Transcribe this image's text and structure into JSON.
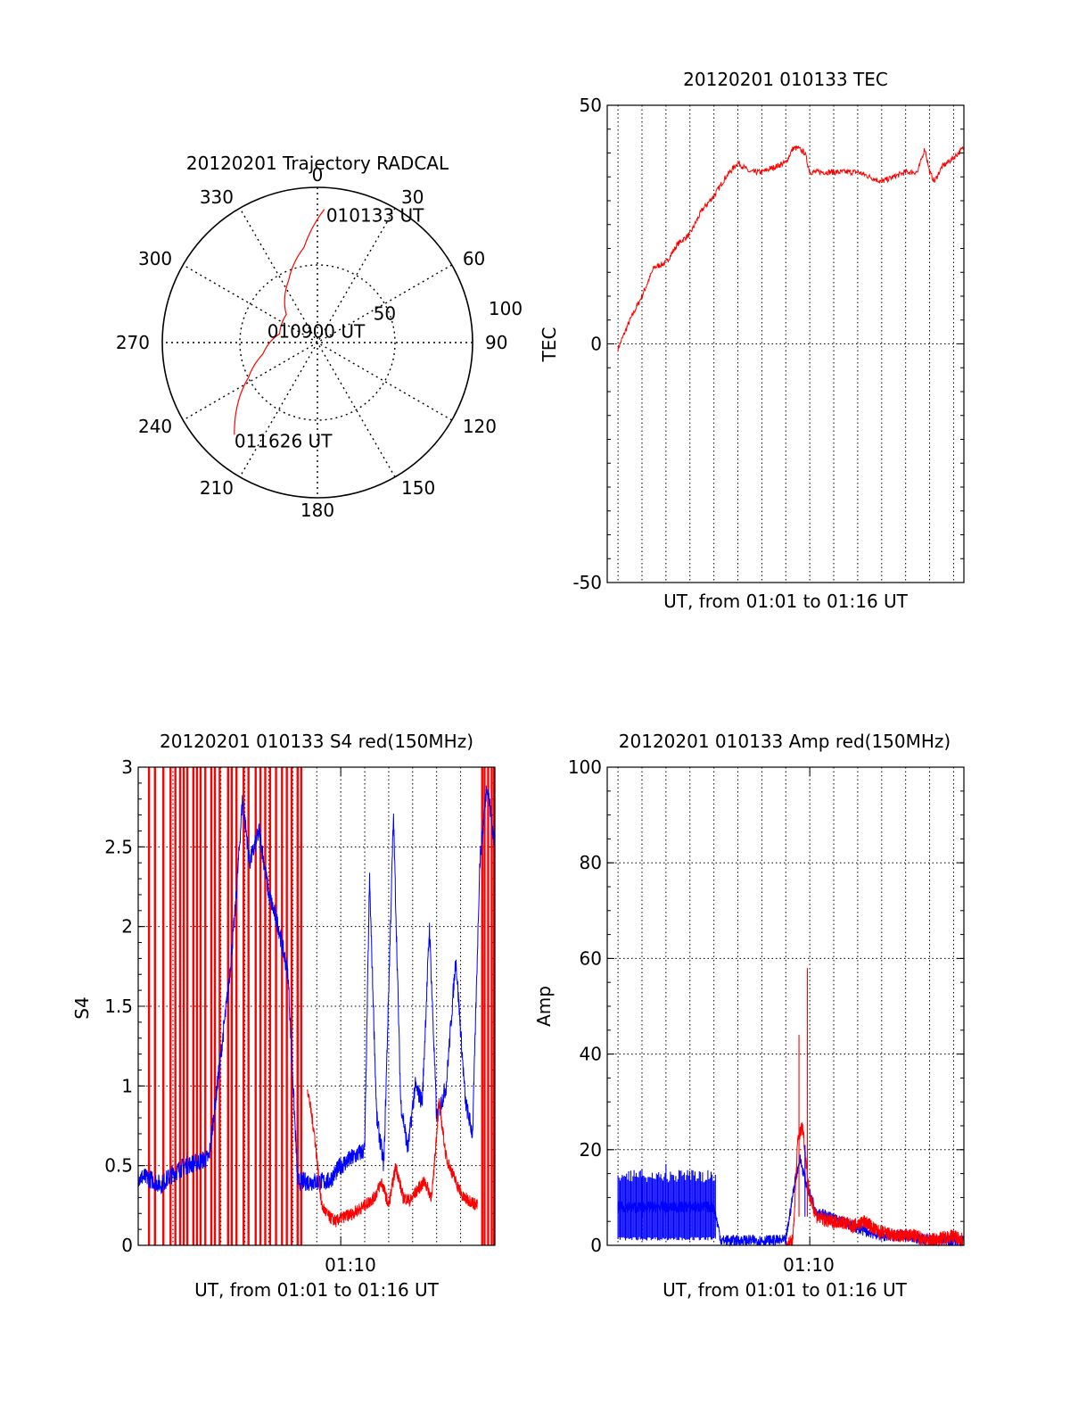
{
  "chart_data": [
    {
      "type": "polar",
      "title": "20120201 Trajectory RADCAL",
      "angle_labels": [
        "0",
        "30",
        "60",
        "90",
        "120",
        "150",
        "180",
        "210",
        "240",
        "270",
        "300",
        "330"
      ],
      "radius_labels": [
        "50",
        "100"
      ],
      "rlim": [
        0,
        100
      ],
      "grid": true,
      "trajectory": {
        "color": "#ff0000",
        "points_az_zd": [
          [
            3,
            86
          ],
          [
            352,
            62
          ],
          [
            335,
            44
          ],
          [
            312,
            27
          ],
          [
            283,
            25
          ],
          [
            258,
            36
          ],
          [
            243,
            50
          ],
          [
            233,
            64
          ],
          [
            226,
            74
          ],
          [
            222,
            80
          ]
        ],
        "labels": [
          {
            "text": "010133 UT",
            "az": 3,
            "zd": 86
          },
          {
            "text": "010900 UT",
            "az": 355,
            "zd": 2
          },
          {
            "text": "011626 UT",
            "az": 222,
            "zd": 80
          }
        ]
      }
    },
    {
      "type": "line",
      "title": "20120201 010133 TEC",
      "xlabel": "UT, from 01:01 to 01:16 UT",
      "ylabel": "TEC",
      "ylim": [
        -50,
        50
      ],
      "yticks": [
        "-50",
        "0",
        "50"
      ],
      "xlim_min": [
        1.55,
        16.43
      ],
      "grid": true,
      "series": [
        {
          "color": "#ff0000",
          "x": [
            2.0,
            2.5,
            3.0,
            3.5,
            4.0,
            4.5,
            5.0,
            5.5,
            6.0,
            6.5,
            7.0,
            7.5,
            8.0,
            8.5,
            9.0,
            9.3,
            9.5,
            9.8,
            10.0,
            10.5,
            11.0,
            11.5,
            12.0,
            12.5,
            13.0,
            13.5,
            14.0,
            14.5,
            14.8,
            15.0,
            15.2,
            15.5,
            16.0,
            16.4
          ],
          "y": [
            -1,
            5,
            10,
            16,
            17,
            21,
            23,
            28,
            31,
            35,
            38,
            36,
            36,
            37,
            38,
            41,
            41,
            40,
            36,
            36,
            36,
            36,
            36,
            35,
            34,
            35,
            36,
            36,
            41,
            36,
            34,
            37,
            39,
            41
          ]
        }
      ]
    },
    {
      "type": "line",
      "title": "20120201 010133 S4 red(150MHz)",
      "xlabel": "UT, from 01:01 to 01:16 UT",
      "ylabel": "S4",
      "ylim": [
        0,
        3
      ],
      "yticks": [
        "0",
        "0.5",
        "1",
        "1.5",
        "2",
        "2.5",
        "3"
      ],
      "xtick_label": "01:10",
      "xtick_min": 10,
      "xlim_min": [
        1.55,
        16.43
      ],
      "grid": true,
      "series": [
        {
          "color": "#0000ff",
          "x": [
            1.55,
            2.0,
            2.5,
            3.0,
            3.5,
            4.0,
            4.5,
            5.0,
            5.3,
            5.6,
            5.9,
            6.2,
            6.6,
            7.0,
            7.4,
            7.8,
            8.2,
            8.6,
            9.0,
            9.5,
            10.0,
            10.5,
            11.0,
            11.2,
            11.5,
            11.8,
            12.2,
            12.5,
            12.8,
            13.1,
            13.4,
            13.7,
            14.0,
            14.4,
            14.8,
            15.2,
            15.5,
            15.8,
            16.1,
            16.43
          ],
          "y": [
            0.43,
            0.42,
            0.38,
            0.45,
            0.5,
            0.52,
            0.55,
            1.2,
            1.6,
            2.1,
            2.8,
            2.4,
            2.6,
            2.2,
            2.0,
            1.7,
            0.4,
            0.4,
            0.4,
            0.4,
            0.5,
            0.55,
            0.6,
            2.3,
            0.8,
            0.5,
            2.7,
            0.9,
            0.6,
            1.0,
            0.9,
            2.0,
            0.8,
            1.0,
            1.8,
            0.9,
            0.7,
            2.4,
            2.9,
            2.5
          ]
        },
        {
          "color": "#ff0000",
          "x": [
            8.6,
            8.9,
            9.2,
            9.5,
            9.8,
            10.0,
            10.5,
            11.0,
            11.4,
            11.7,
            12.0,
            12.3,
            12.6,
            12.9,
            13.2,
            13.5,
            13.8,
            14.1,
            14.4,
            14.8,
            15.1,
            15.4,
            15.7
          ],
          "y": [
            1.0,
            0.7,
            0.25,
            0.18,
            0.15,
            0.17,
            0.2,
            0.25,
            0.3,
            0.4,
            0.25,
            0.5,
            0.3,
            0.28,
            0.35,
            0.4,
            0.3,
            0.9,
            0.55,
            0.4,
            0.3,
            0.28,
            0.25
          ]
        }
      ],
      "spike_lines": {
        "color": "#ff0000",
        "x": [
          2.0,
          2.25,
          2.6,
          2.9,
          3.1,
          3.3,
          3.45,
          3.6,
          3.85,
          4.0,
          4.15,
          4.35,
          4.6,
          4.75,
          4.95,
          5.3,
          5.45,
          5.65,
          5.95,
          6.15,
          6.45,
          6.65,
          6.85,
          7.05,
          7.3,
          7.55,
          7.75,
          7.95,
          8.2,
          8.35,
          15.9,
          16.0,
          16.15,
          16.3,
          16.4
        ]
      }
    },
    {
      "type": "line",
      "title": "20120201 010133 Amp red(150MHz)",
      "xlabel": "UT, from 01:01 to 01:16 UT",
      "ylabel": "Amp",
      "ylim": [
        0,
        100
      ],
      "yticks": [
        "0",
        "20",
        "40",
        "60",
        "80",
        "100"
      ],
      "xtick_label": "01:10",
      "xtick_min": 10,
      "xlim_min": [
        1.55,
        16.43
      ],
      "grid": true,
      "series": [
        {
          "color": "#0000ff",
          "x": [
            2.0,
            6.0,
            6.3,
            8.0,
            9.0,
            9.4,
            9.6,
            9.9,
            10.3,
            10.8,
            11.3,
            11.8,
            12.3,
            13.0,
            14.0,
            15.0,
            16.4
          ],
          "y": [
            8,
            8,
            1,
            1,
            1,
            14,
            18,
            12,
            7,
            6,
            5,
            4,
            3,
            2,
            2,
            1,
            1
          ]
        },
        {
          "color": "#ff0000",
          "x": [
            9.0,
            9.3,
            9.5,
            9.7,
            10.0,
            10.3,
            10.8,
            11.3,
            11.8,
            12.3,
            12.8,
            13.5,
            14.3,
            15.0,
            16.0,
            16.4
          ],
          "y": [
            0,
            1,
            22,
            25,
            10,
            6,
            5,
            5,
            4,
            5,
            3,
            2,
            2,
            1,
            2,
            1
          ]
        }
      ],
      "noise_band": {
        "color": "#0000ff",
        "x": [
          2.0,
          6.1
        ],
        "y_low": [
          1,
          1
        ],
        "y_high": [
          15,
          15
        ]
      },
      "spikes": [
        {
          "color": "#ff0000",
          "x": 9.55,
          "y": 44
        },
        {
          "color": "#ff0000",
          "x": 9.9,
          "y": 58
        },
        {
          "color": "#0000ff",
          "x": 9.8,
          "y": 21
        },
        {
          "color": "#0000ff",
          "x": 4.0,
          "y": 17
        },
        {
          "color": "#0000ff",
          "x": 3.0,
          "y": 16
        }
      ]
    }
  ]
}
